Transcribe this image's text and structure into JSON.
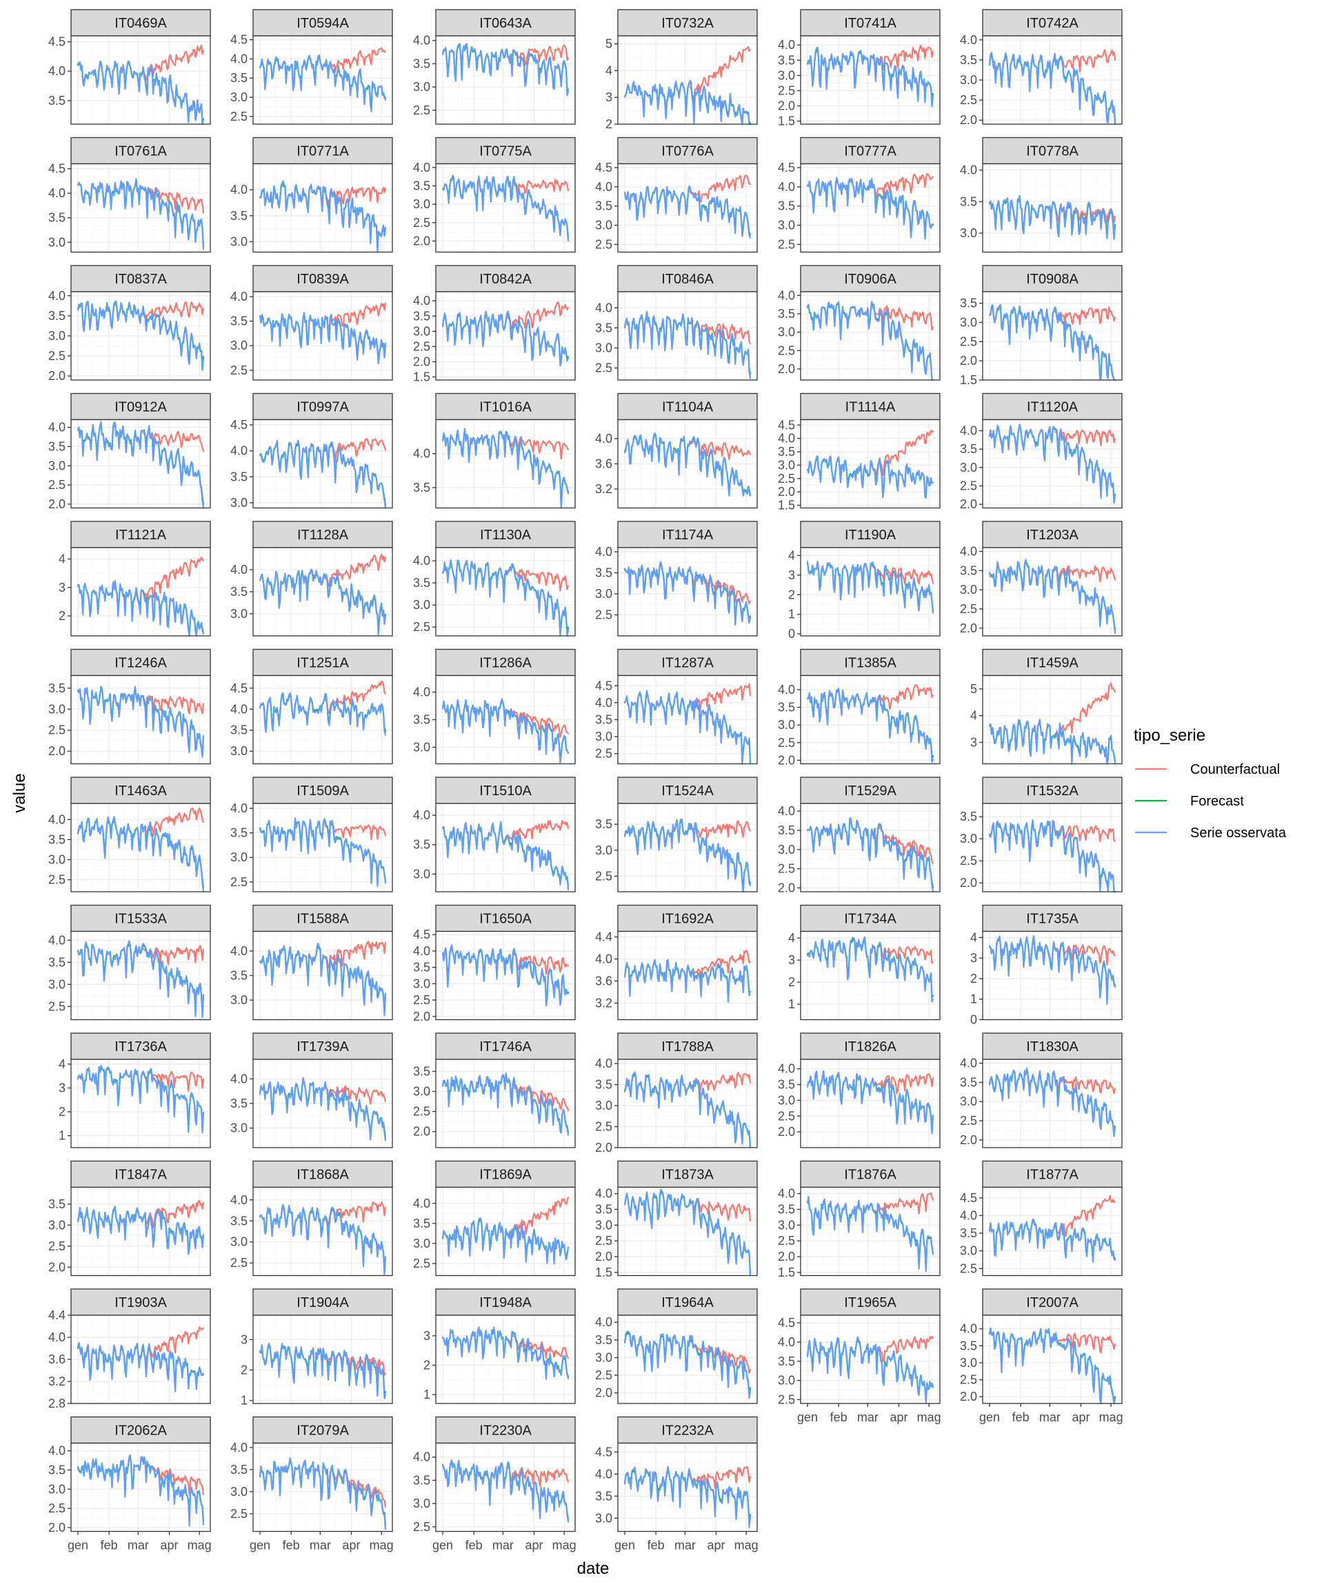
{
  "chart_data": {
    "type": "line",
    "xlabel": "date",
    "ylabel": "value",
    "x_ticks": [
      "gen",
      "feb",
      "mar",
      "apr",
      "mag"
    ],
    "legend": {
      "title": "tipo_serie",
      "placement": "right",
      "entries": [
        {
          "name": "Counterfactual",
          "color": "#F8766D"
        },
        {
          "name": "Forecast",
          "color": "#00BA38"
        },
        {
          "name": "Serie osservata",
          "color": "#619CFF"
        }
      ]
    },
    "x_range": [
      "2020-01-01",
      "2020-05-05"
    ],
    "break_date": "2020-03-08",
    "grid": true,
    "panels": [
      {
        "id": "IT0469A",
        "ylim": [
          3.1,
          4.6
        ],
        "yticks": [
          "3.5",
          "4.0",
          "4.5"
        ],
        "level": 4.0,
        "end_obs": 3.3,
        "end_cf": 4.4
      },
      {
        "id": "IT0594A",
        "ylim": [
          2.3,
          4.6
        ],
        "yticks": [
          "2.5",
          "3.0",
          "3.5",
          "4.0",
          "4.5"
        ],
        "level": 3.8,
        "end_obs": 3.2,
        "end_cf": 4.3
      },
      {
        "id": "IT0643A",
        "ylim": [
          2.2,
          4.1
        ],
        "yticks": [
          "2.5",
          "3.0",
          "3.5",
          "4.0"
        ],
        "level": 3.7,
        "end_obs": 3.3,
        "end_cf": 3.8
      },
      {
        "id": "IT0732A",
        "ylim": [
          2.0,
          5.3
        ],
        "yticks": [
          "2",
          "3",
          "4",
          "5"
        ],
        "level": 3.2,
        "end_obs": 2.5,
        "end_cf": 5.0
      },
      {
        "id": "IT0741A",
        "ylim": [
          1.4,
          4.3
        ],
        "yticks": [
          "1.5",
          "2.0",
          "2.5",
          "3.0",
          "3.5",
          "4.0"
        ],
        "level": 3.5,
        "end_obs": 2.6,
        "end_cf": 3.9
      },
      {
        "id": "IT0742A",
        "ylim": [
          1.9,
          4.1
        ],
        "yticks": [
          "2.0",
          "2.5",
          "3.0",
          "3.5",
          "4.0"
        ],
        "level": 3.4,
        "end_obs": 2.3,
        "end_cf": 3.7
      },
      {
        "id": "IT0761A",
        "ylim": [
          2.8,
          4.6
        ],
        "yticks": [
          "3.0",
          "3.5",
          "4.0",
          "4.5"
        ],
        "level": 4.1,
        "end_obs": 3.3,
        "end_cf": 3.8
      },
      {
        "id": "IT0771A",
        "ylim": [
          2.8,
          4.5
        ],
        "yticks": [
          "3.0",
          "3.5",
          "4.0"
        ],
        "level": 3.9,
        "end_obs": 3.2,
        "end_cf": 4.0
      },
      {
        "id": "IT0775A",
        "ylim": [
          1.7,
          4.1
        ],
        "yticks": [
          "2.0",
          "2.5",
          "3.0",
          "3.5",
          "4.0"
        ],
        "level": 3.5,
        "end_obs": 2.5,
        "end_cf": 3.6
      },
      {
        "id": "IT0776A",
        "ylim": [
          2.3,
          4.6
        ],
        "yticks": [
          "2.5",
          "3.0",
          "3.5",
          "4.0",
          "4.5"
        ],
        "level": 3.8,
        "end_obs": 3.2,
        "end_cf": 4.3
      },
      {
        "id": "IT0777A",
        "ylim": [
          2.3,
          4.6
        ],
        "yticks": [
          "2.5",
          "3.0",
          "3.5",
          "4.0",
          "4.5"
        ],
        "level": 4.0,
        "end_obs": 3.1,
        "end_cf": 4.3
      },
      {
        "id": "IT0778A",
        "ylim": [
          2.7,
          4.1
        ],
        "yticks": [
          "3.0",
          "3.5",
          "4.0"
        ],
        "level": 3.4,
        "end_obs": 3.2,
        "end_cf": 3.3
      },
      {
        "id": "IT0837A",
        "ylim": [
          1.9,
          4.1
        ],
        "yticks": [
          "2.0",
          "2.5",
          "3.0",
          "3.5",
          "4.0"
        ],
        "level": 3.6,
        "end_obs": 2.7,
        "end_cf": 3.8
      },
      {
        "id": "IT0839A",
        "ylim": [
          2.3,
          4.1
        ],
        "yticks": [
          "2.5",
          "3.0",
          "3.5",
          "4.0"
        ],
        "level": 3.5,
        "end_obs": 2.9,
        "end_cf": 3.8
      },
      {
        "id": "IT0842A",
        "ylim": [
          1.4,
          4.3
        ],
        "yticks": [
          "1.5",
          "2.0",
          "2.5",
          "3.0",
          "3.5",
          "4.0"
        ],
        "level": 3.3,
        "end_obs": 2.4,
        "end_cf": 3.9
      },
      {
        "id": "IT0846A",
        "ylim": [
          2.2,
          4.4
        ],
        "yticks": [
          "2.5",
          "3.0",
          "3.5",
          "4.0"
        ],
        "level": 3.6,
        "end_obs": 2.9,
        "end_cf": 3.4
      },
      {
        "id": "IT0906A",
        "ylim": [
          1.7,
          4.1
        ],
        "yticks": [
          "2.0",
          "2.5",
          "3.0",
          "3.5",
          "4.0"
        ],
        "level": 3.6,
        "end_obs": 2.1,
        "end_cf": 3.4
      },
      {
        "id": "IT0908A",
        "ylim": [
          1.5,
          3.8
        ],
        "yticks": [
          "1.5",
          "2.0",
          "2.5",
          "3.0",
          "3.5"
        ],
        "level": 3.2,
        "end_obs": 1.8,
        "end_cf": 3.3
      },
      {
        "id": "IT0912A",
        "ylim": [
          1.9,
          4.2
        ],
        "yticks": [
          "2.0",
          "2.5",
          "3.0",
          "3.5",
          "4.0"
        ],
        "level": 3.8,
        "end_obs": 2.6,
        "end_cf": 3.7
      },
      {
        "id": "IT0997A",
        "ylim": [
          2.9,
          4.6
        ],
        "yticks": [
          "3.0",
          "3.5",
          "4.0",
          "4.5"
        ],
        "level": 4.0,
        "end_obs": 3.3,
        "end_cf": 4.2
      },
      {
        "id": "IT1016A",
        "ylim": [
          3.2,
          4.5
        ],
        "yticks": [
          "3.5",
          "4.0"
        ],
        "level": 4.2,
        "end_obs": 3.5,
        "end_cf": 4.1
      },
      {
        "id": "IT1104A",
        "ylim": [
          2.9,
          4.3
        ],
        "yticks": [
          "3.2",
          "3.6",
          "4.0"
        ],
        "level": 3.9,
        "end_obs": 3.2,
        "end_cf": 3.8
      },
      {
        "id": "IT1114A",
        "ylim": [
          1.4,
          4.7
        ],
        "yticks": [
          "1.5",
          "2.0",
          "2.5",
          "3.0",
          "3.5",
          "4.0",
          "4.5"
        ],
        "level": 2.9,
        "end_obs": 2.4,
        "end_cf": 4.3
      },
      {
        "id": "IT1120A",
        "ylim": [
          1.9,
          4.3
        ],
        "yticks": [
          "2.0",
          "2.5",
          "3.0",
          "3.5",
          "4.0"
        ],
        "level": 3.9,
        "end_obs": 2.5,
        "end_cf": 3.9
      },
      {
        "id": "IT1121A",
        "ylim": [
          1.3,
          4.4
        ],
        "yticks": [
          "2",
          "3",
          "4"
        ],
        "level": 2.9,
        "end_obs": 1.7,
        "end_cf": 4.1
      },
      {
        "id": "IT1128A",
        "ylim": [
          2.5,
          4.5
        ],
        "yticks": [
          "3.0",
          "3.5",
          "4.0"
        ],
        "level": 3.8,
        "end_obs": 3.0,
        "end_cf": 4.3
      },
      {
        "id": "IT1130A",
        "ylim": [
          2.3,
          4.3
        ],
        "yticks": [
          "2.5",
          "3.0",
          "3.5",
          "4.0"
        ],
        "level": 3.8,
        "end_obs": 2.8,
        "end_cf": 3.6
      },
      {
        "id": "IT1174A",
        "ylim": [
          2.0,
          4.1
        ],
        "yticks": [
          "2.5",
          "3.0",
          "3.5",
          "4.0"
        ],
        "level": 3.5,
        "end_obs": 2.6,
        "end_cf": 2.9
      },
      {
        "id": "IT1190A",
        "ylim": [
          -0.1,
          4.4
        ],
        "yticks": [
          "0",
          "1",
          "2",
          "3",
          "4"
        ],
        "level": 3.3,
        "end_obs": 2.0,
        "end_cf": 3.0
      },
      {
        "id": "IT1203A",
        "ylim": [
          1.8,
          4.1
        ],
        "yticks": [
          "2.0",
          "2.5",
          "3.0",
          "3.5",
          "4.0"
        ],
        "level": 3.5,
        "end_obs": 2.4,
        "end_cf": 3.5
      },
      {
        "id": "IT1246A",
        "ylim": [
          1.7,
          3.8
        ],
        "yticks": [
          "2.0",
          "2.5",
          "3.0",
          "3.5"
        ],
        "level": 3.3,
        "end_obs": 2.3,
        "end_cf": 3.1
      },
      {
        "id": "IT1251A",
        "ylim": [
          2.7,
          4.8
        ],
        "yticks": [
          "3.0",
          "3.5",
          "4.0",
          "4.5"
        ],
        "level": 4.1,
        "end_obs": 3.9,
        "end_cf": 4.6
      },
      {
        "id": "IT1286A",
        "ylim": [
          2.7,
          4.3
        ],
        "yticks": [
          "3.0",
          "3.5",
          "4.0"
        ],
        "level": 3.7,
        "end_obs": 3.0,
        "end_cf": 3.3
      },
      {
        "id": "IT1287A",
        "ylim": [
          2.2,
          4.8
        ],
        "yticks": [
          "2.5",
          "3.0",
          "3.5",
          "4.0",
          "4.5"
        ],
        "level": 4.0,
        "end_obs": 2.8,
        "end_cf": 4.5
      },
      {
        "id": "IT1385A",
        "ylim": [
          1.9,
          4.4
        ],
        "yticks": [
          "2.0",
          "2.5",
          "3.0",
          "3.5",
          "4.0"
        ],
        "level": 3.7,
        "end_obs": 2.6,
        "end_cf": 4.1
      },
      {
        "id": "IT1459A",
        "ylim": [
          2.2,
          5.5
        ],
        "yticks": [
          "3",
          "4",
          "5"
        ],
        "level": 3.4,
        "end_obs": 2.7,
        "end_cf": 5.1
      },
      {
        "id": "IT1463A",
        "ylim": [
          2.2,
          4.4
        ],
        "yticks": [
          "2.5",
          "3.0",
          "3.5",
          "4.0"
        ],
        "level": 3.8,
        "end_obs": 2.8,
        "end_cf": 4.2
      },
      {
        "id": "IT1509A",
        "ylim": [
          2.3,
          4.1
        ],
        "yticks": [
          "2.5",
          "3.0",
          "3.5",
          "4.0"
        ],
        "level": 3.6,
        "end_obs": 2.8,
        "end_cf": 3.6
      },
      {
        "id": "IT1510A",
        "ylim": [
          2.7,
          4.2
        ],
        "yticks": [
          "3.0",
          "3.5",
          "4.0"
        ],
        "level": 3.7,
        "end_obs": 3.0,
        "end_cf": 3.9
      },
      {
        "id": "IT1524A",
        "ylim": [
          2.2,
          3.9
        ],
        "yticks": [
          "2.5",
          "3.0",
          "3.5"
        ],
        "level": 3.4,
        "end_obs": 2.6,
        "end_cf": 3.5
      },
      {
        "id": "IT1529A",
        "ylim": [
          1.9,
          4.2
        ],
        "yticks": [
          "2.0",
          "2.5",
          "3.0",
          "3.5",
          "4.0"
        ],
        "level": 3.5,
        "end_obs": 2.5,
        "end_cf": 2.9
      },
      {
        "id": "IT1532A",
        "ylim": [
          1.8,
          3.8
        ],
        "yticks": [
          "2.0",
          "2.5",
          "3.0",
          "3.5"
        ],
        "level": 3.2,
        "end_obs": 2.1,
        "end_cf": 3.2
      },
      {
        "id": "IT1533A",
        "ylim": [
          2.2,
          4.2
        ],
        "yticks": [
          "2.5",
          "3.0",
          "3.5",
          "4.0"
        ],
        "level": 3.7,
        "end_obs": 2.8,
        "end_cf": 3.8
      },
      {
        "id": "IT1588A",
        "ylim": [
          2.6,
          4.4
        ],
        "yticks": [
          "3.0",
          "3.5",
          "4.0"
        ],
        "level": 3.9,
        "end_obs": 3.2,
        "end_cf": 4.2
      },
      {
        "id": "IT1650A",
        "ylim": [
          1.9,
          4.6
        ],
        "yticks": [
          "2.0",
          "2.5",
          "3.0",
          "3.5",
          "4.0",
          "4.5"
        ],
        "level": 3.8,
        "end_obs": 2.8,
        "end_cf": 3.6
      },
      {
        "id": "IT1692A",
        "ylim": [
          2.9,
          4.5
        ],
        "yticks": [
          "3.2",
          "3.6",
          "4.0",
          "4.4"
        ],
        "level": 3.8,
        "end_obs": 3.7,
        "end_cf": 4.1
      },
      {
        "id": "IT1734A",
        "ylim": [
          0.3,
          4.3
        ],
        "yticks": [
          "1",
          "2",
          "3",
          "4"
        ],
        "level": 3.5,
        "end_obs": 2.3,
        "end_cf": 3.4
      },
      {
        "id": "IT1735A",
        "ylim": [
          0.0,
          4.3
        ],
        "yticks": [
          "0",
          "1",
          "2",
          "3",
          "4"
        ],
        "level": 3.5,
        "end_obs": 2.0,
        "end_cf": 3.3
      },
      {
        "id": "IT1736A",
        "ylim": [
          0.5,
          4.2
        ],
        "yticks": [
          "1",
          "2",
          "3",
          "4"
        ],
        "level": 3.5,
        "end_obs": 2.2,
        "end_cf": 3.5
      },
      {
        "id": "IT1739A",
        "ylim": [
          2.6,
          4.4
        ],
        "yticks": [
          "3.0",
          "3.5",
          "4.0"
        ],
        "level": 3.8,
        "end_obs": 3.1,
        "end_cf": 3.7
      },
      {
        "id": "IT1746A",
        "ylim": [
          1.6,
          3.8
        ],
        "yticks": [
          "2.0",
          "2.5",
          "3.0",
          "3.5"
        ],
        "level": 3.2,
        "end_obs": 2.3,
        "end_cf": 2.7
      },
      {
        "id": "IT1788A",
        "ylim": [
          2.0,
          4.1
        ],
        "yticks": [
          "2.0",
          "2.5",
          "3.0",
          "3.5",
          "4.0"
        ],
        "level": 3.5,
        "end_obs": 2.3,
        "end_cf": 3.7
      },
      {
        "id": "IT1826A",
        "ylim": [
          1.5,
          4.3
        ],
        "yticks": [
          "2.0",
          "2.5",
          "3.0",
          "3.5",
          "4.0"
        ],
        "level": 3.6,
        "end_obs": 2.5,
        "end_cf": 3.7
      },
      {
        "id": "IT1830A",
        "ylim": [
          1.8,
          4.1
        ],
        "yticks": [
          "2.0",
          "2.5",
          "3.0",
          "3.5",
          "4.0"
        ],
        "level": 3.6,
        "end_obs": 2.5,
        "end_cf": 3.4
      },
      {
        "id": "IT1847A",
        "ylim": [
          1.8,
          3.9
        ],
        "yticks": [
          "2.0",
          "2.5",
          "3.0",
          "3.5"
        ],
        "level": 3.2,
        "end_obs": 2.7,
        "end_cf": 3.5
      },
      {
        "id": "IT1868A",
        "ylim": [
          2.2,
          4.3
        ],
        "yticks": [
          "2.5",
          "3.0",
          "3.5",
          "4.0"
        ],
        "level": 3.6,
        "end_obs": 2.8,
        "end_cf": 3.9
      },
      {
        "id": "IT1869A",
        "ylim": [
          2.2,
          4.4
        ],
        "yticks": [
          "2.5",
          "3.0",
          "3.5",
          "4.0"
        ],
        "level": 3.3,
        "end_obs": 2.8,
        "end_cf": 4.1
      },
      {
        "id": "IT1873A",
        "ylim": [
          1.4,
          4.2
        ],
        "yticks": [
          "1.5",
          "2.0",
          "2.5",
          "3.0",
          "3.5",
          "4.0"
        ],
        "level": 3.7,
        "end_obs": 2.1,
        "end_cf": 3.5
      },
      {
        "id": "IT1876A",
        "ylim": [
          1.4,
          4.2
        ],
        "yticks": [
          "1.5",
          "2.0",
          "2.5",
          "3.0",
          "3.5",
          "4.0"
        ],
        "level": 3.5,
        "end_obs": 2.3,
        "end_cf": 3.9
      },
      {
        "id": "IT1877A",
        "ylim": [
          2.3,
          4.8
        ],
        "yticks": [
          "2.5",
          "3.0",
          "3.5",
          "4.0",
          "4.5"
        ],
        "level": 3.6,
        "end_obs": 3.0,
        "end_cf": 4.5
      },
      {
        "id": "IT1903A",
        "ylim": [
          2.8,
          4.4
        ],
        "yticks": [
          "2.8",
          "3.2",
          "3.6",
          "4.0",
          "4.4"
        ],
        "level": 3.7,
        "end_obs": 3.4,
        "end_cf": 4.2
      },
      {
        "id": "IT1904A",
        "ylim": [
          0.9,
          3.8
        ],
        "yticks": [
          "1",
          "2",
          "3"
        ],
        "level": 2.5,
        "end_obs": 1.9,
        "end_cf": 2.2
      },
      {
        "id": "IT1948A",
        "ylim": [
          0.7,
          3.7
        ],
        "yticks": [
          "1",
          "2",
          "3"
        ],
        "level": 2.9,
        "end_obs": 1.9,
        "end_cf": 2.4
      },
      {
        "id": "IT1964A",
        "ylim": [
          1.7,
          4.2
        ],
        "yticks": [
          "2.0",
          "2.5",
          "3.0",
          "3.5",
          "4.0"
        ],
        "level": 3.4,
        "end_obs": 2.6,
        "end_cf": 2.9
      },
      {
        "id": "IT1965A",
        "ylim": [
          2.4,
          4.7
        ],
        "yticks": [
          "2.5",
          "3.0",
          "3.5",
          "4.0",
          "4.5"
        ],
        "level": 3.8,
        "end_obs": 2.8,
        "end_cf": 4.1
      },
      {
        "id": "IT2007A",
        "ylim": [
          1.8,
          4.4
        ],
        "yticks": [
          "2.0",
          "2.5",
          "3.0",
          "3.5",
          "4.0"
        ],
        "level": 3.7,
        "end_obs": 2.3,
        "end_cf": 3.7
      },
      {
        "id": "IT2062A",
        "ylim": [
          1.9,
          4.2
        ],
        "yticks": [
          "2.0",
          "2.5",
          "3.0",
          "3.5",
          "4.0"
        ],
        "level": 3.6,
        "end_obs": 2.6,
        "end_cf": 3.1
      },
      {
        "id": "IT2079A",
        "ylim": [
          2.1,
          4.1
        ],
        "yticks": [
          "2.5",
          "3.0",
          "3.5",
          "4.0"
        ],
        "level": 3.5,
        "end_obs": 2.7,
        "end_cf": 2.9
      },
      {
        "id": "IT2230A",
        "ylim": [
          2.4,
          4.3
        ],
        "yticks": [
          "2.5",
          "3.0",
          "3.5",
          "4.0"
        ],
        "level": 3.7,
        "end_obs": 2.9,
        "end_cf": 3.6
      },
      {
        "id": "IT2232A",
        "ylim": [
          2.7,
          4.7
        ],
        "yticks": [
          "3.0",
          "3.5",
          "4.0",
          "4.5"
        ],
        "level": 3.9,
        "end_obs": 3.4,
        "end_cf": 4.1
      }
    ]
  }
}
